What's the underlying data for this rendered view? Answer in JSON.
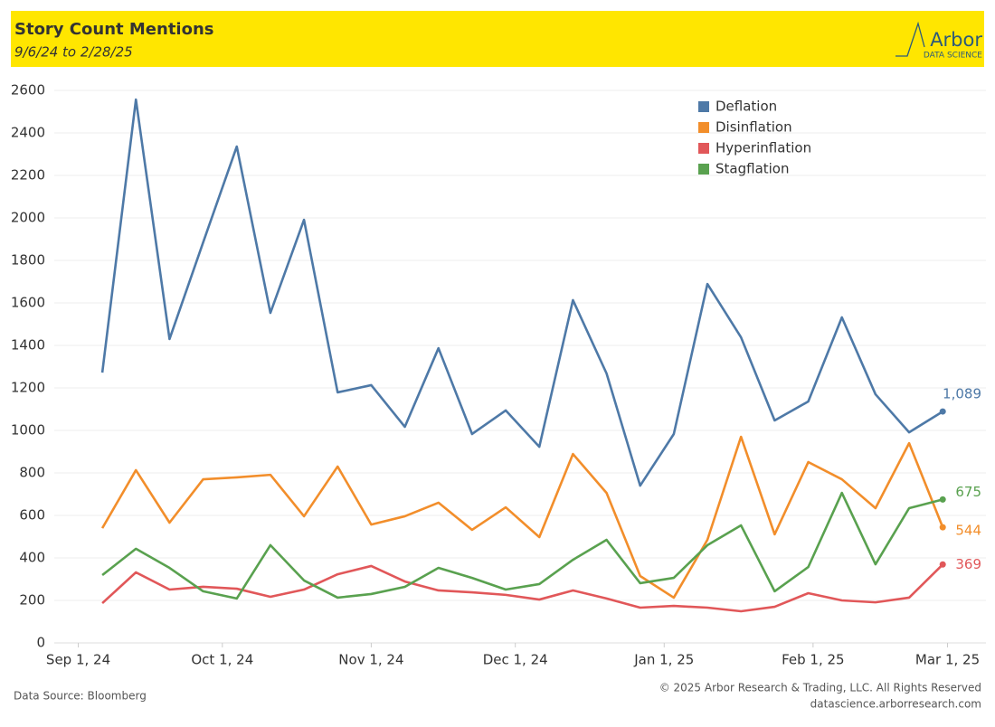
{
  "header": {
    "title": "Story Count Mentions",
    "subtitle": "9/6/24 to 2/28/25",
    "logo": "Arbor",
    "logo_sub": "DATA SCIENCE"
  },
  "footer": {
    "source": "Data Source: Bloomberg",
    "copyright": "© 2025 Arbor Research & Trading, LLC. All Rights Reserved",
    "url": "datascience.arborresearch.com"
  },
  "chart_data": {
    "type": "line",
    "x": [
      "2024-09-06",
      "2024-09-13",
      "2024-09-20",
      "2024-09-27",
      "2024-10-04",
      "2024-10-11",
      "2024-10-18",
      "2024-10-25",
      "2024-11-01",
      "2024-11-08",
      "2024-11-15",
      "2024-11-22",
      "2024-11-29",
      "2024-12-06",
      "2024-12-13",
      "2024-12-20",
      "2024-12-27",
      "2025-01-03",
      "2025-01-10",
      "2025-01-17",
      "2025-01-24",
      "2025-01-31",
      "2025-02-07",
      "2025-02-14",
      "2025-02-21",
      "2025-02-28"
    ],
    "series": [
      {
        "name": "Deflation",
        "color": "#4e79a7",
        "last_label": "1,089",
        "values": [
          1272,
          2557,
          1430,
          1885,
          2336,
          1553,
          1991,
          1179,
          1213,
          1017,
          1387,
          983,
          1094,
          923,
          1613,
          1268,
          740,
          983,
          1689,
          1438,
          1047,
          1136,
          1532,
          1170,
          991,
          1089
        ]
      },
      {
        "name": "Disinflation",
        "color": "#f28e2b",
        "last_label": "544",
        "values": [
          540,
          813,
          566,
          770,
          779,
          791,
          596,
          830,
          557,
          596,
          660,
          532,
          638,
          498,
          889,
          706,
          315,
          213,
          485,
          970,
          511,
          851,
          770,
          634,
          940,
          544
        ]
      },
      {
        "name": "Hyperinflation",
        "color": "#e15759",
        "last_label": "369",
        "values": [
          187,
          332,
          251,
          264,
          255,
          217,
          251,
          323,
          362,
          289,
          247,
          238,
          226,
          204,
          247,
          209,
          166,
          174,
          166,
          149,
          170,
          234,
          200,
          191,
          213,
          369
        ]
      },
      {
        "name": "Stagflation",
        "color": "#59a14f",
        "last_label": "675",
        "values": [
          319,
          443,
          353,
          243,
          209,
          460,
          294,
          213,
          230,
          264,
          353,
          306,
          251,
          277,
          391,
          485,
          281,
          306,
          460,
          553,
          243,
          357,
          706,
          370,
          634,
          675
        ]
      }
    ],
    "xlim": [
      "2024-08-27",
      "2025-03-09"
    ],
    "xticks": [
      {
        "value": "2024-09-01",
        "label": "Sep 1, 24"
      },
      {
        "value": "2024-10-01",
        "label": "Oct 1, 24"
      },
      {
        "value": "2024-11-01",
        "label": "Nov 1, 24"
      },
      {
        "value": "2024-12-01",
        "label": "Dec 1, 24"
      },
      {
        "value": "2025-01-01",
        "label": "Jan 1, 25"
      },
      {
        "value": "2025-02-01",
        "label": "Feb 1, 25"
      },
      {
        "value": "2025-03-01",
        "label": "Mar 1, 25"
      }
    ],
    "ylim": [
      0,
      2600
    ],
    "yticks": [
      0,
      200,
      400,
      600,
      800,
      1000,
      1200,
      1400,
      1600,
      1800,
      2000,
      2200,
      2400,
      2600
    ],
    "grid": true,
    "legend": "top-right"
  }
}
